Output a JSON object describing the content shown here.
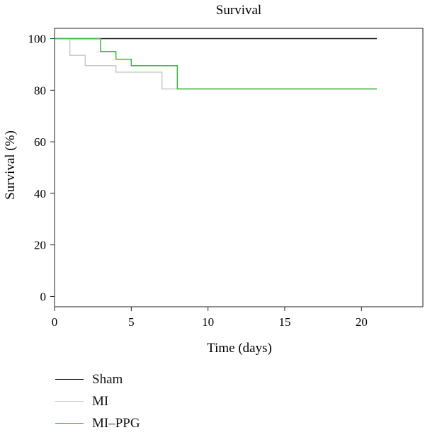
{
  "chart_data": {
    "type": "line",
    "title": "Survival",
    "xlabel": "Time (days)",
    "ylabel": "Survival (%)",
    "xlim": [
      0,
      24
    ],
    "ylim": [
      -4,
      104
    ],
    "xticks": [
      0,
      5,
      10,
      15,
      20
    ],
    "yticks": [
      0,
      20,
      40,
      60,
      80,
      100
    ],
    "grid": false,
    "legend_position": "bottom-left",
    "series": [
      {
        "name": "Sham",
        "color": "#111111",
        "step_points": [
          [
            0,
            100
          ],
          [
            21,
            100
          ]
        ]
      },
      {
        "name": "MI",
        "color": "#c8c8c8",
        "step_points": [
          [
            0,
            100
          ],
          [
            1,
            93.5
          ],
          [
            2,
            89.5
          ],
          [
            4,
            87
          ],
          [
            7,
            80.5
          ],
          [
            8,
            80.5
          ],
          [
            21,
            80.5
          ]
        ]
      },
      {
        "name": "MI–PPG",
        "color": "#3db83d",
        "step_points": [
          [
            0,
            100
          ],
          [
            3,
            95
          ],
          [
            4,
            92
          ],
          [
            5,
            89.5
          ],
          [
            8,
            80.5
          ],
          [
            21,
            80.5
          ]
        ]
      }
    ]
  }
}
